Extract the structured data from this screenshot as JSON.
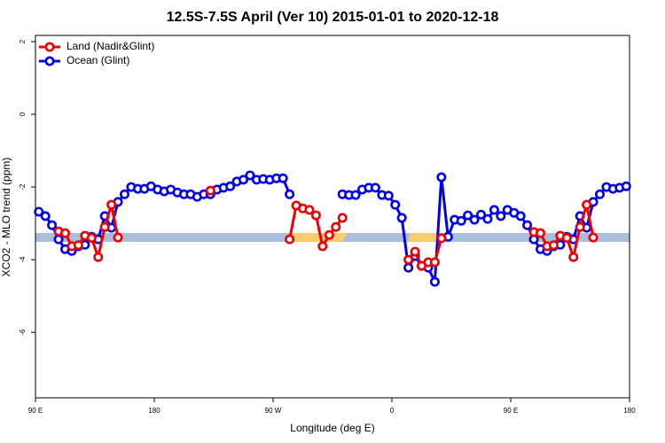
{
  "chart_data": {
    "type": "line",
    "title": "12.5S-7.5S April (Ver 10)   2015-01-01 to 2020-12-18",
    "x_label": "Longitude (deg E)",
    "y_label": "XCO2 - MLO trend (ppm)",
    "x": [
      92.5,
      97.5,
      102.5,
      107.5,
      112.5,
      117.5,
      122.5,
      127.5,
      132.5,
      137.5,
      142.5,
      147.5,
      152.5,
      157.5,
      162.5,
      167.5,
      172.5,
      177.5,
      182.5,
      187.5,
      192.5,
      197.5,
      202.5,
      207.5,
      212.5,
      217.5,
      222.5,
      227.5,
      232.5,
      237.5,
      242.5,
      247.5,
      252.5,
      257.5,
      262.5,
      267.5,
      272.5,
      277.5,
      282.5,
      287.5,
      292.5,
      297.5,
      302.5,
      307.5,
      312.5,
      317.5,
      322.5,
      327.5,
      332.5,
      337.5,
      342.5,
      347.5,
      352.5,
      357.5,
      362.5,
      367.5,
      372.5,
      377.5,
      382.5,
      387.5,
      392.5,
      397.5,
      402.5,
      407.5,
      412.5,
      417.5,
      422.5,
      427.5,
      432.5,
      437.5,
      442.5,
      447.5,
      452.5,
      457.5,
      462.5,
      467.5,
      472.5,
      477.5,
      482.5,
      487.5,
      492.5,
      497.5,
      502.5,
      507.5,
      512.5,
      517.5,
      522.5,
      527.5,
      532.5,
      537.5
    ],
    "series": [
      {
        "name": "Land (Nadir&Glint)",
        "color": "#ee0000",
        "values": [
          null,
          null,
          null,
          -3.22,
          -3.27,
          -3.63,
          -3.6,
          -3.34,
          -3.4,
          -3.93,
          -3.1,
          -2.49,
          -3.39,
          null,
          null,
          null,
          null,
          null,
          null,
          null,
          null,
          null,
          null,
          null,
          null,
          null,
          -2.1,
          null,
          null,
          null,
          null,
          null,
          null,
          null,
          null,
          null,
          null,
          null,
          -3.44,
          -2.51,
          -2.59,
          -2.63,
          -2.78,
          -3.63,
          -3.32,
          -3.1,
          -2.85,
          null,
          null,
          null,
          null,
          null,
          null,
          null,
          null,
          null,
          -4.0,
          -3.78,
          -4.17,
          -4.07,
          -4.07,
          -3.41,
          null,
          null,
          null,
          null,
          null,
          null,
          null,
          null,
          null,
          null,
          null,
          null,
          null,
          -3.24,
          -3.27,
          -3.63,
          -3.6,
          -3.34,
          -3.4,
          -3.93,
          -3.1,
          -2.49,
          -3.39,
          null,
          null,
          null,
          null,
          null
        ]
      },
      {
        "name": "Ocean (Glint)",
        "color": "#0000ee",
        "values": [
          -2.68,
          -2.8,
          -3.05,
          -3.44,
          -3.71,
          -3.76,
          -3.63,
          -3.59,
          -3.37,
          -3.44,
          -2.8,
          -3.12,
          -2.41,
          -2.2,
          -2.0,
          -2.05,
          -2.05,
          -1.98,
          -2.07,
          -2.12,
          -2.07,
          -2.15,
          -2.2,
          -2.2,
          -2.27,
          -2.2,
          -2.2,
          -2.07,
          -2.02,
          -1.98,
          -1.85,
          -1.8,
          -1.68,
          -1.8,
          -1.78,
          -1.8,
          -1.76,
          -1.76,
          -2.2,
          null,
          null,
          null,
          null,
          null,
          null,
          null,
          -2.2,
          -2.22,
          -2.22,
          -2.07,
          -2.02,
          -2.02,
          -2.22,
          -2.24,
          -2.49,
          -2.85,
          -4.22,
          -3.9,
          -4.17,
          -4.22,
          -4.61,
          -1.73,
          -3.37,
          -2.9,
          -2.93,
          -2.78,
          -2.9,
          -2.76,
          -2.88,
          -2.63,
          -2.8,
          -2.63,
          -2.71,
          -2.8,
          -3.05,
          -3.44,
          -3.71,
          -3.76,
          -3.63,
          -3.59,
          -3.37,
          -3.44,
          -2.8,
          -3.12,
          -2.41,
          -2.2,
          -2.0,
          -2.05,
          -2.02,
          -1.98
        ]
      }
    ],
    "xlim": [
      90,
      540
    ],
    "xticks": [
      {
        "value": 90,
        "label": "90 E"
      },
      180,
      {
        "value": 270,
        "label": "90 W"
      },
      {
        "value": 360,
        "label": "0"
      },
      {
        "value": 450,
        "label": "90 E"
      },
      {
        "value": 540,
        "label": "180"
      }
    ],
    "ylim": [
      -7.8,
      2.17
    ],
    "yticks": [
      -6,
      -4,
      -2,
      0,
      2
    ],
    "legend": "top-left"
  }
}
